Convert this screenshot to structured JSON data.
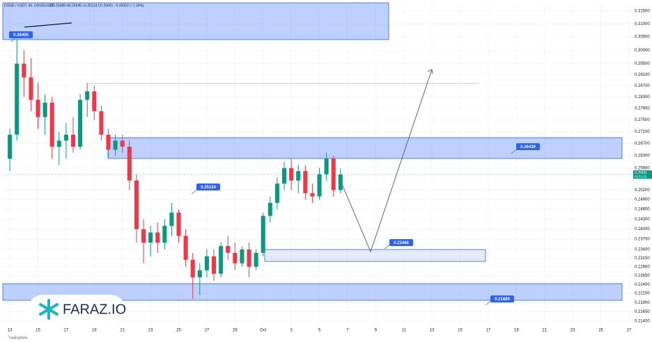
{
  "chart_data": {
    "type": "candlestick",
    "title": "DOGE / USDT, 4h, DOGEUSDT",
    "ohlc_summary": "O0.25389 H0.25645 L0.25214 C0.25691 −0.00302 (−1.19%)",
    "x": [
      0,
      0.5,
      1,
      1.5,
      2,
      2.5,
      3,
      3.5,
      4,
      4.5,
      5,
      5.5,
      6,
      6.5,
      7,
      7.5,
      8,
      8.5,
      9,
      9.5,
      10,
      10.5,
      11,
      11.5,
      12,
      12.5,
      13,
      13.5,
      14,
      14.5,
      15,
      15.5,
      16,
      16.5,
      17,
      17.5,
      18,
      18.5,
      19,
      19.5,
      20,
      20.5,
      21,
      21.5,
      22,
      22.5,
      23,
      23.5
    ],
    "open": [
      0.262,
      0.27,
      0.295,
      0.29,
      0.282,
      0.276,
      0.281,
      0.266,
      0.268,
      0.27,
      0.266,
      0.282,
      0.285,
      0.278,
      0.27,
      0.265,
      0.268,
      0.266,
      0.255,
      0.24,
      0.236,
      0.239,
      0.236,
      0.241,
      0.245,
      0.238,
      0.231,
      0.226,
      0.228,
      0.232,
      0.227,
      0.235,
      0.233,
      0.23,
      0.234,
      0.229,
      0.233,
      0.244,
      0.248,
      0.254,
      0.259,
      0.255,
      0.258,
      0.251,
      0.25,
      0.257,
      0.262,
      0.252
    ],
    "high": [
      0.272,
      0.30405,
      0.3,
      0.297,
      0.288,
      0.284,
      0.283,
      0.271,
      0.274,
      0.276,
      0.284,
      0.288,
      0.287,
      0.28,
      0.272,
      0.27,
      0.27,
      0.268,
      0.257,
      0.243,
      0.241,
      0.242,
      0.243,
      0.248,
      0.246,
      0.24,
      0.233,
      0.23,
      0.234,
      0.234,
      0.236,
      0.238,
      0.236,
      0.235,
      0.236,
      0.234,
      0.245,
      0.25,
      0.256,
      0.261,
      0.262,
      0.26,
      0.26,
      0.254,
      0.259,
      0.264,
      0.263,
      0.2589
    ],
    "low": [
      0.258,
      0.268,
      0.283,
      0.278,
      0.272,
      0.27,
      0.262,
      0.26,
      0.262,
      0.264,
      0.265,
      0.276,
      0.275,
      0.268,
      0.262,
      0.263,
      0.264,
      0.252,
      0.236,
      0.23,
      0.232,
      0.233,
      0.234,
      0.238,
      0.236,
      0.229,
      0.22,
      0.221,
      0.226,
      0.225,
      0.226,
      0.231,
      0.228,
      0.229,
      0.226,
      0.228,
      0.232,
      0.242,
      0.246,
      0.252,
      0.252,
      0.251,
      0.249,
      0.248,
      0.249,
      0.255,
      0.25,
      0.251
    ],
    "close": [
      0.27,
      0.295,
      0.29,
      0.282,
      0.276,
      0.281,
      0.266,
      0.268,
      0.27,
      0.266,
      0.282,
      0.285,
      0.278,
      0.27,
      0.265,
      0.268,
      0.266,
      0.255,
      0.24,
      0.236,
      0.239,
      0.236,
      0.241,
      0.245,
      0.238,
      0.231,
      0.226,
      0.228,
      0.232,
      0.227,
      0.235,
      0.233,
      0.23,
      0.234,
      0.229,
      0.233,
      0.244,
      0.248,
      0.254,
      0.259,
      0.255,
      0.258,
      0.251,
      0.25,
      0.257,
      0.262,
      0.252,
      0.25691
    ],
    "up_color": "#089981",
    "down_color": "#f23645",
    "xlim": [
      -0.5,
      44.3
    ],
    "xticks": [
      {
        "value": 0,
        "label": "13"
      },
      {
        "value": 2,
        "label": "15"
      },
      {
        "value": 4,
        "label": "17"
      },
      {
        "value": 6,
        "label": "19"
      },
      {
        "value": 8,
        "label": "21"
      },
      {
        "value": 10,
        "label": "23"
      },
      {
        "value": 12,
        "label": "25"
      },
      {
        "value": 14,
        "label": "27"
      },
      {
        "value": 16,
        "label": "29"
      },
      {
        "value": 18,
        "label": "Oct"
      },
      {
        "value": 20,
        "label": "3"
      },
      {
        "value": 22,
        "label": "5"
      },
      {
        "value": 24,
        "label": "7"
      },
      {
        "value": 26,
        "label": "9"
      },
      {
        "value": 28,
        "label": "11"
      },
      {
        "value": 30,
        "label": "13"
      },
      {
        "value": 32,
        "label": "15"
      },
      {
        "value": 34,
        "label": "17"
      },
      {
        "value": 36,
        "label": "19"
      },
      {
        "value": 38,
        "label": "21"
      },
      {
        "value": 40,
        "label": "23"
      },
      {
        "value": 42,
        "label": "25"
      },
      {
        "value": 44,
        "label": "27"
      }
    ],
    "ylim": [
      0.2125,
      0.318
    ],
    "log_scale": true,
    "grid": true,
    "yticks": [
      {
        "value": 0.315,
        "label": "0.31500"
      },
      {
        "value": 0.31,
        "label": "0.31000"
      },
      {
        "value": 0.305,
        "label": "0.30500"
      },
      {
        "value": 0.3,
        "label": "0.30000"
      },
      {
        "value": 0.295,
        "label": "0.29500"
      },
      {
        "value": 0.291,
        "label": "0.29100"
      },
      {
        "value": 0.287,
        "label": "0.28700"
      },
      {
        "value": 0.283,
        "label": "0.28300"
      },
      {
        "value": 0.279,
        "label": "0.27900"
      },
      {
        "value": 0.275,
        "label": "0.27500"
      },
      {
        "value": 0.271,
        "label": "0.27100"
      },
      {
        "value": 0.267,
        "label": "0.26700"
      },
      {
        "value": 0.263,
        "label": "0.26300"
      },
      {
        "value": 0.259,
        "label": "0.25900"
      },
      {
        "value": 0.252,
        "label": "0.25200"
      },
      {
        "value": 0.249,
        "label": "0.24900"
      },
      {
        "value": 0.246,
        "label": "0.24600"
      },
      {
        "value": 0.243,
        "label": "0.24300"
      },
      {
        "value": 0.24,
        "label": "0.24000"
      },
      {
        "value": 0.237,
        "label": "0.23700"
      },
      {
        "value": 0.234,
        "label": "0.23400"
      },
      {
        "value": 0.2315,
        "label": "0.23150"
      },
      {
        "value": 0.229,
        "label": "0.22900"
      },
      {
        "value": 0.2265,
        "label": "0.22650"
      },
      {
        "value": 0.224,
        "label": "0.22400"
      },
      {
        "value": 0.2215,
        "label": "0.22150"
      },
      {
        "value": 0.219,
        "label": "0.21900"
      },
      {
        "value": 0.2165,
        "label": "0.21650"
      },
      {
        "value": 0.214,
        "label": "0.21400"
      }
    ],
    "last_price_label": "0.25691",
    "countdown": "01:51:05",
    "annotations": [
      "0.30405",
      "0.26439",
      "0.25134",
      "0.23466",
      "0.21889"
    ],
    "watermark": "FARAZ.IO",
    "footer": "TradingView"
  }
}
